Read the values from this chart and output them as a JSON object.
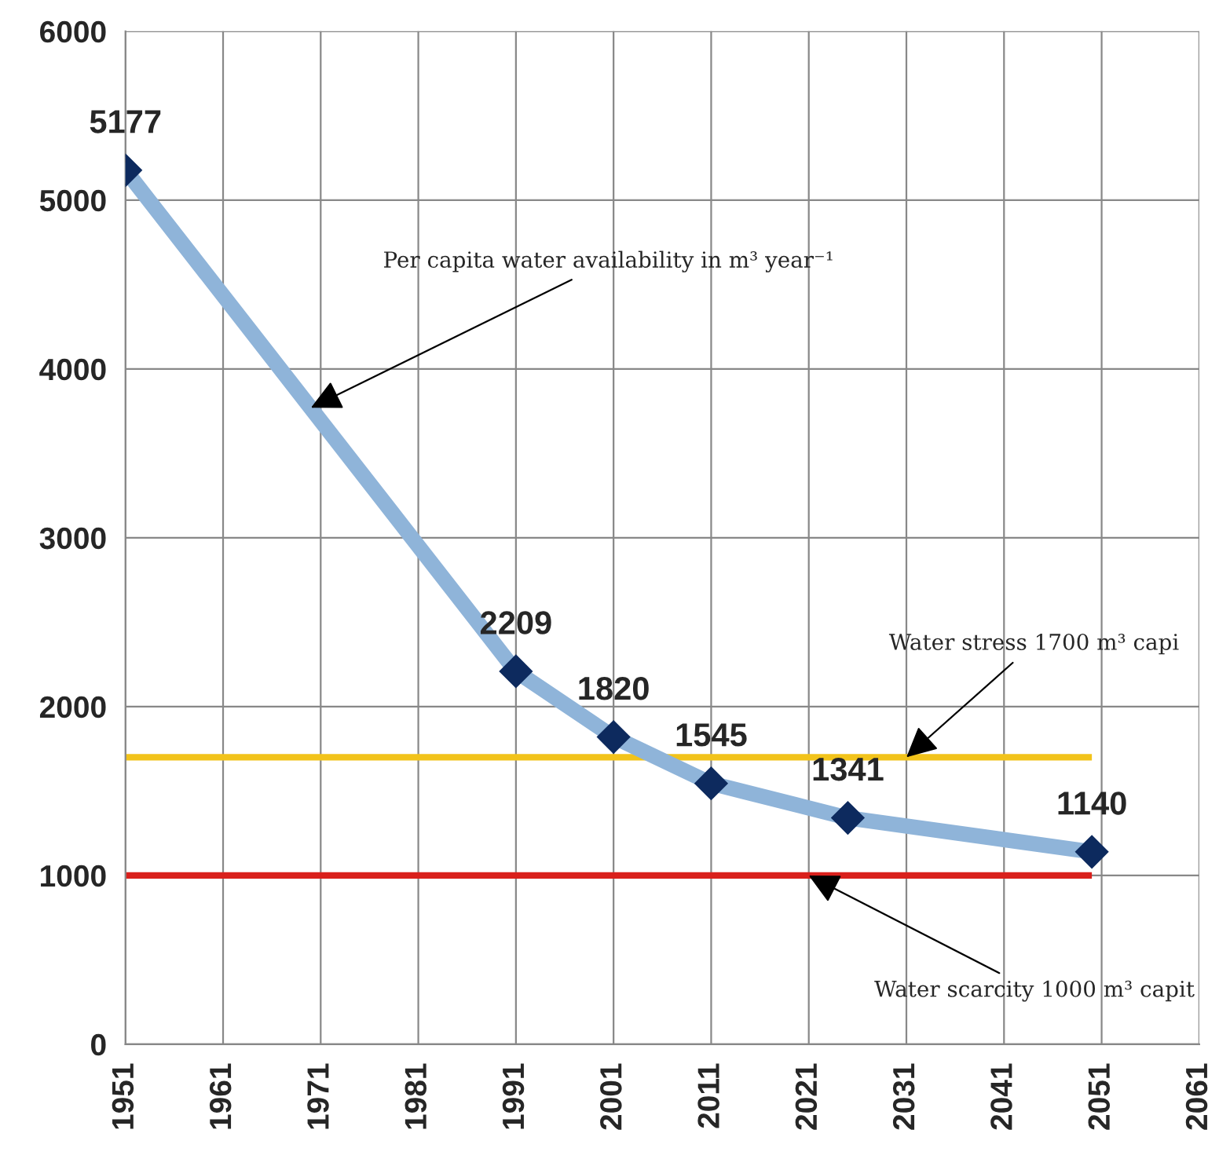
{
  "chart_data": {
    "type": "line",
    "x": [
      1951,
      1991,
      2001,
      2011,
      2025,
      2050
    ],
    "series": [
      {
        "color": "#8fb4d9",
        "colors": [
          "#0d2a5e",
          "#0d2a5e",
          "#0d2a5e",
          "#0d2a5e",
          "#0d2a5e",
          "#0d2a5e"
        ],
        "values": [
          5177,
          2209,
          1820,
          1545,
          1341,
          1140
        ]
      }
    ],
    "marker": "diamond",
    "data_labels": true,
    "xlim": [
      1951,
      2061
    ],
    "xticks": [
      1951,
      1961,
      1971,
      1981,
      1991,
      2001,
      2011,
      2021,
      2031,
      2041,
      2051,
      2061
    ],
    "ylim": [
      0,
      6000
    ],
    "yticks": [
      0,
      1000,
      2000,
      3000,
      4000,
      5000,
      6000
    ],
    "grid": true,
    "ref_lines": [
      {
        "axis": "y",
        "value": 1700,
        "color": "#f2c31a"
      },
      {
        "axis": "y",
        "value": 1000,
        "color": "#d9201c"
      }
    ],
    "annotations": [
      {
        "text": "Per capita water availability in m³ year⁻¹",
        "x": 1970,
        "y": 3770
      },
      {
        "text": "Water stress 1700 m³ capi",
        "x": 2031,
        "y": 1700
      },
      {
        "text": "Water scarcity 1000 m³ capit",
        "x": 2021,
        "y": 1000
      }
    ]
  }
}
